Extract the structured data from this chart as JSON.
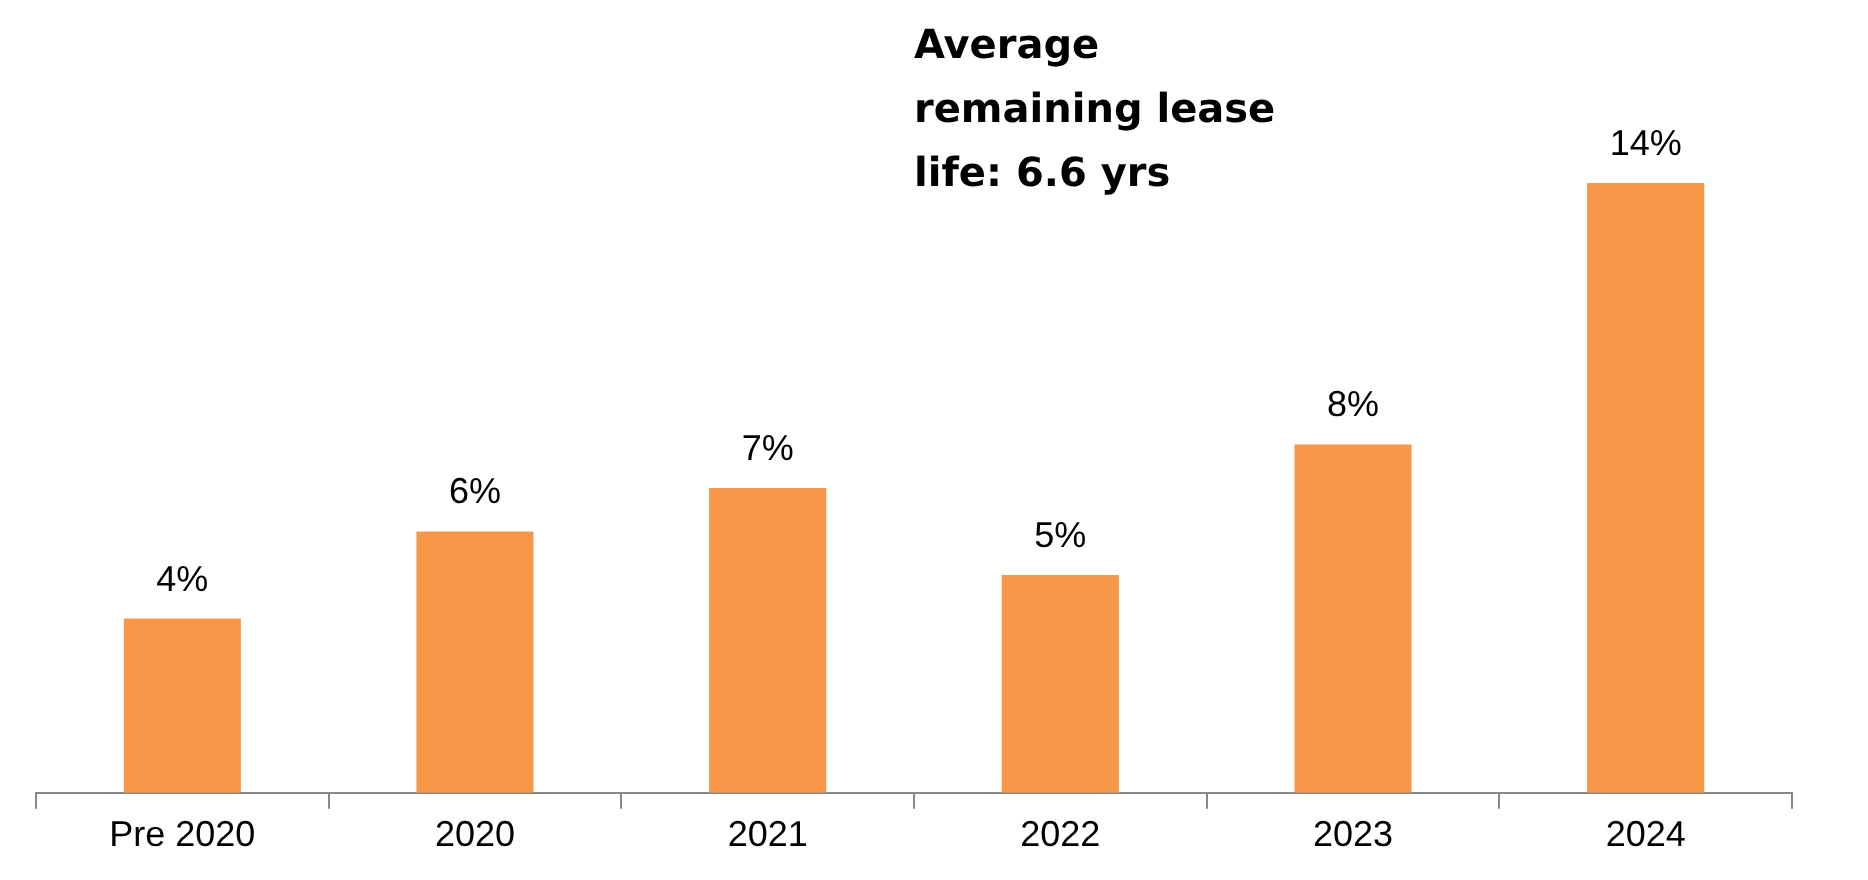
{
  "chart_data": {
    "type": "bar",
    "categories": [
      "Pre 2020",
      "2020",
      "2021",
      "2022",
      "2023",
      "2024"
    ],
    "values": [
      4,
      6,
      7,
      5,
      8,
      14
    ],
    "color": "#f79646",
    "data_labels": true,
    "grid": false,
    "legend": false,
    "value_labels": [
      "4%",
      "6%",
      "7%",
      "5%",
      "8%",
      "14%"
    ],
    "annotations": [
      "Average remaining lease life: 6.6 yrs"
    ]
  }
}
